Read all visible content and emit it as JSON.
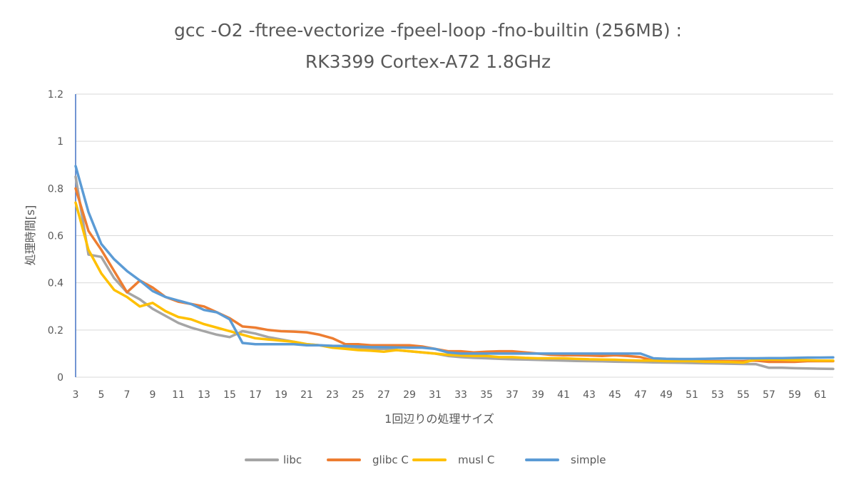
{
  "chart_data": {
    "type": "line",
    "title_line1": "gcc -O2 -ftree-vectorize -fpeel-loop -fno-builtin (256MB) :",
    "title_line2": "RK3399 Cortex-A72 1.8GHz",
    "xlabel": "1回辺りの処理サイズ",
    "ylabel": "処理時間[s]",
    "ylim": [
      0,
      1.2
    ],
    "yticks": [
      "0",
      "0.2",
      "0.4",
      "0.6",
      "0.8",
      "1",
      "1.2"
    ],
    "x": [
      3,
      4,
      5,
      6,
      7,
      8,
      9,
      10,
      11,
      12,
      13,
      14,
      15,
      16,
      17,
      18,
      19,
      20,
      21,
      22,
      23,
      24,
      25,
      26,
      27,
      28,
      29,
      30,
      31,
      32,
      33,
      34,
      35,
      36,
      37,
      38,
      39,
      40,
      41,
      42,
      43,
      44,
      45,
      46,
      47,
      48,
      49,
      50,
      51,
      52,
      53,
      54,
      55,
      56,
      57,
      58,
      59,
      60,
      61,
      62
    ],
    "xtick_labels": [
      "3",
      "5",
      "7",
      "9",
      "11",
      "13",
      "15",
      "17",
      "19",
      "21",
      "23",
      "25",
      "27",
      "29",
      "31",
      "33",
      "35",
      "37",
      "39",
      "41",
      "43",
      "45",
      "47",
      "49",
      "51",
      "53",
      "55",
      "57",
      "59",
      "61"
    ],
    "grid": true,
    "legend_position": "bottom",
    "series": [
      {
        "name": "libc",
        "color": "#a5a5a5",
        "values": [
          0.85,
          0.52,
          0.51,
          0.42,
          0.36,
          0.33,
          0.29,
          0.26,
          0.23,
          0.21,
          0.195,
          0.18,
          0.17,
          0.195,
          0.185,
          0.17,
          0.16,
          0.15,
          0.14,
          0.135,
          0.13,
          0.13,
          0.125,
          0.12,
          0.12,
          0.115,
          0.11,
          0.105,
          0.1,
          0.09,
          0.085,
          0.082,
          0.08,
          0.078,
          0.076,
          0.075,
          0.073,
          0.072,
          0.07,
          0.069,
          0.068,
          0.067,
          0.066,
          0.065,
          0.064,
          0.063,
          0.062,
          0.061,
          0.06,
          0.059,
          0.058,
          0.057,
          0.056,
          0.055,
          0.04,
          0.04,
          0.038,
          0.037,
          0.036,
          0.035
        ]
      },
      {
        "name": "glibc C",
        "color": "#ed7d31",
        "values": [
          0.8,
          0.62,
          0.54,
          0.45,
          0.36,
          0.41,
          0.38,
          0.34,
          0.32,
          0.31,
          0.3,
          0.275,
          0.25,
          0.215,
          0.21,
          0.2,
          0.195,
          0.193,
          0.19,
          0.18,
          0.165,
          0.14,
          0.14,
          0.135,
          0.135,
          0.135,
          0.135,
          0.13,
          0.12,
          0.11,
          0.11,
          0.105,
          0.108,
          0.11,
          0.11,
          0.105,
          0.1,
          0.095,
          0.093,
          0.093,
          0.092,
          0.09,
          0.093,
          0.09,
          0.085,
          0.07,
          0.07,
          0.07,
          0.07,
          0.068,
          0.068,
          0.068,
          0.068,
          0.07,
          0.065,
          0.065,
          0.065,
          0.068,
          0.068,
          0.068
        ]
      },
      {
        "name": "musl C",
        "color": "#ffc000",
        "values": [
          0.74,
          0.54,
          0.44,
          0.37,
          0.34,
          0.3,
          0.315,
          0.28,
          0.255,
          0.245,
          0.225,
          0.21,
          0.195,
          0.18,
          0.165,
          0.16,
          0.155,
          0.15,
          0.14,
          0.135,
          0.125,
          0.12,
          0.115,
          0.112,
          0.108,
          0.115,
          0.11,
          0.105,
          0.1,
          0.095,
          0.092,
          0.09,
          0.09,
          0.085,
          0.085,
          0.082,
          0.08,
          0.08,
          0.08,
          0.078,
          0.076,
          0.075,
          0.074,
          0.072,
          0.07,
          0.07,
          0.068,
          0.068,
          0.068,
          0.066,
          0.065,
          0.064,
          0.062,
          0.075,
          0.075,
          0.074,
          0.072,
          0.072,
          0.07,
          0.07
        ]
      },
      {
        "name": "simple",
        "color": "#5b9bd5",
        "values": [
          0.895,
          0.7,
          0.565,
          0.5,
          0.45,
          0.41,
          0.365,
          0.34,
          0.325,
          0.31,
          0.285,
          0.275,
          0.245,
          0.145,
          0.14,
          0.14,
          0.14,
          0.14,
          0.135,
          0.135,
          0.133,
          0.132,
          0.13,
          0.128,
          0.127,
          0.126,
          0.125,
          0.125,
          0.12,
          0.105,
          0.1,
          0.1,
          0.1,
          0.1,
          0.1,
          0.1,
          0.1,
          0.1,
          0.1,
          0.1,
          0.1,
          0.1,
          0.1,
          0.1,
          0.1,
          0.08,
          0.078,
          0.077,
          0.077,
          0.078,
          0.079,
          0.08,
          0.08,
          0.08,
          0.081,
          0.081,
          0.082,
          0.083,
          0.083,
          0.084
        ]
      }
    ]
  }
}
